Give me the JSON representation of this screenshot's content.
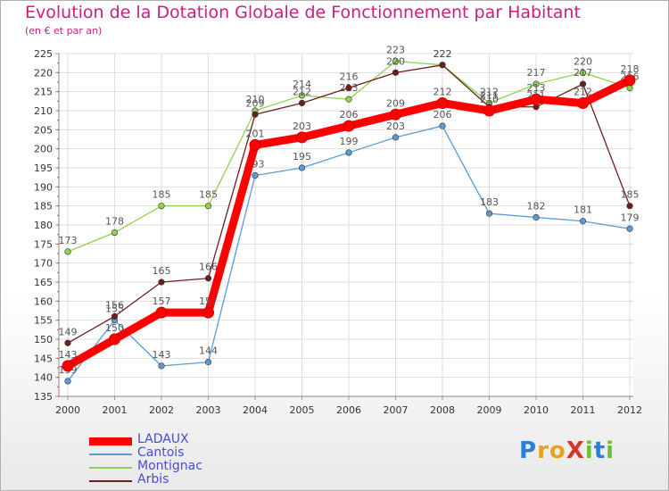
{
  "header": {
    "title": "Evolution de la Dotation Globale de Fonctionnement par Habitant",
    "subtitle": "(en € et par an)"
  },
  "logo": {
    "text": "ProXiti",
    "letters": [
      {
        "ch": "P",
        "color": "#2b7fd6"
      },
      {
        "ch": "r",
        "color": "#e8a21d"
      },
      {
        "ch": "o",
        "color": "#e8a21d"
      },
      {
        "ch": "X",
        "color": "#d9362b"
      },
      {
        "ch": "i",
        "color": "#6cbf3a"
      },
      {
        "ch": "t",
        "color": "#2b7fd6"
      },
      {
        "ch": "i",
        "color": "#6cbf3a"
      }
    ]
  },
  "chart_data": {
    "type": "line",
    "title": "Evolution de la Dotation Globale de Fonctionnement par Habitant",
    "subtitle": "(en € et par an)",
    "xlabel": "",
    "ylabel": "",
    "ylim": [
      135,
      225
    ],
    "yticks": [
      135,
      140,
      145,
      150,
      155,
      160,
      165,
      170,
      175,
      180,
      185,
      190,
      195,
      200,
      205,
      210,
      215,
      220,
      225
    ],
    "categories": [
      "2000",
      "2001",
      "2002",
      "2003",
      "2004",
      "2005",
      "2006",
      "2007",
      "2008",
      "2009",
      "2010",
      "2011",
      "2012"
    ],
    "grid": true,
    "legend_position": "bottom-left",
    "series": [
      {
        "name": "Cantois",
        "color": "#5b9bd5",
        "values": [
          139,
          155,
          143,
          144,
          193,
          195,
          199,
          203,
          206,
          183,
          182,
          181,
          179
        ]
      },
      {
        "name": "Montignac",
        "color": "#8fd34e",
        "values": [
          173,
          178,
          185,
          185,
          210,
          214,
          213,
          223,
          222,
          212,
          217,
          220,
          216
        ]
      },
      {
        "name": "Arbis",
        "color": "#6b1f1f",
        "values": [
          149,
          156,
          165,
          166,
          209,
          212,
          216,
          220,
          222,
          211,
          211,
          217,
          185
        ]
      },
      {
        "name": "LADAUX",
        "color": "#ff0000",
        "values": [
          143,
          150,
          157,
          157,
          201,
          203,
          206,
          209,
          212,
          210,
          213,
          212,
          218
        ]
      }
    ],
    "legend_order": [
      "LADAUX",
      "Cantois",
      "Montignac",
      "Arbis"
    ]
  }
}
